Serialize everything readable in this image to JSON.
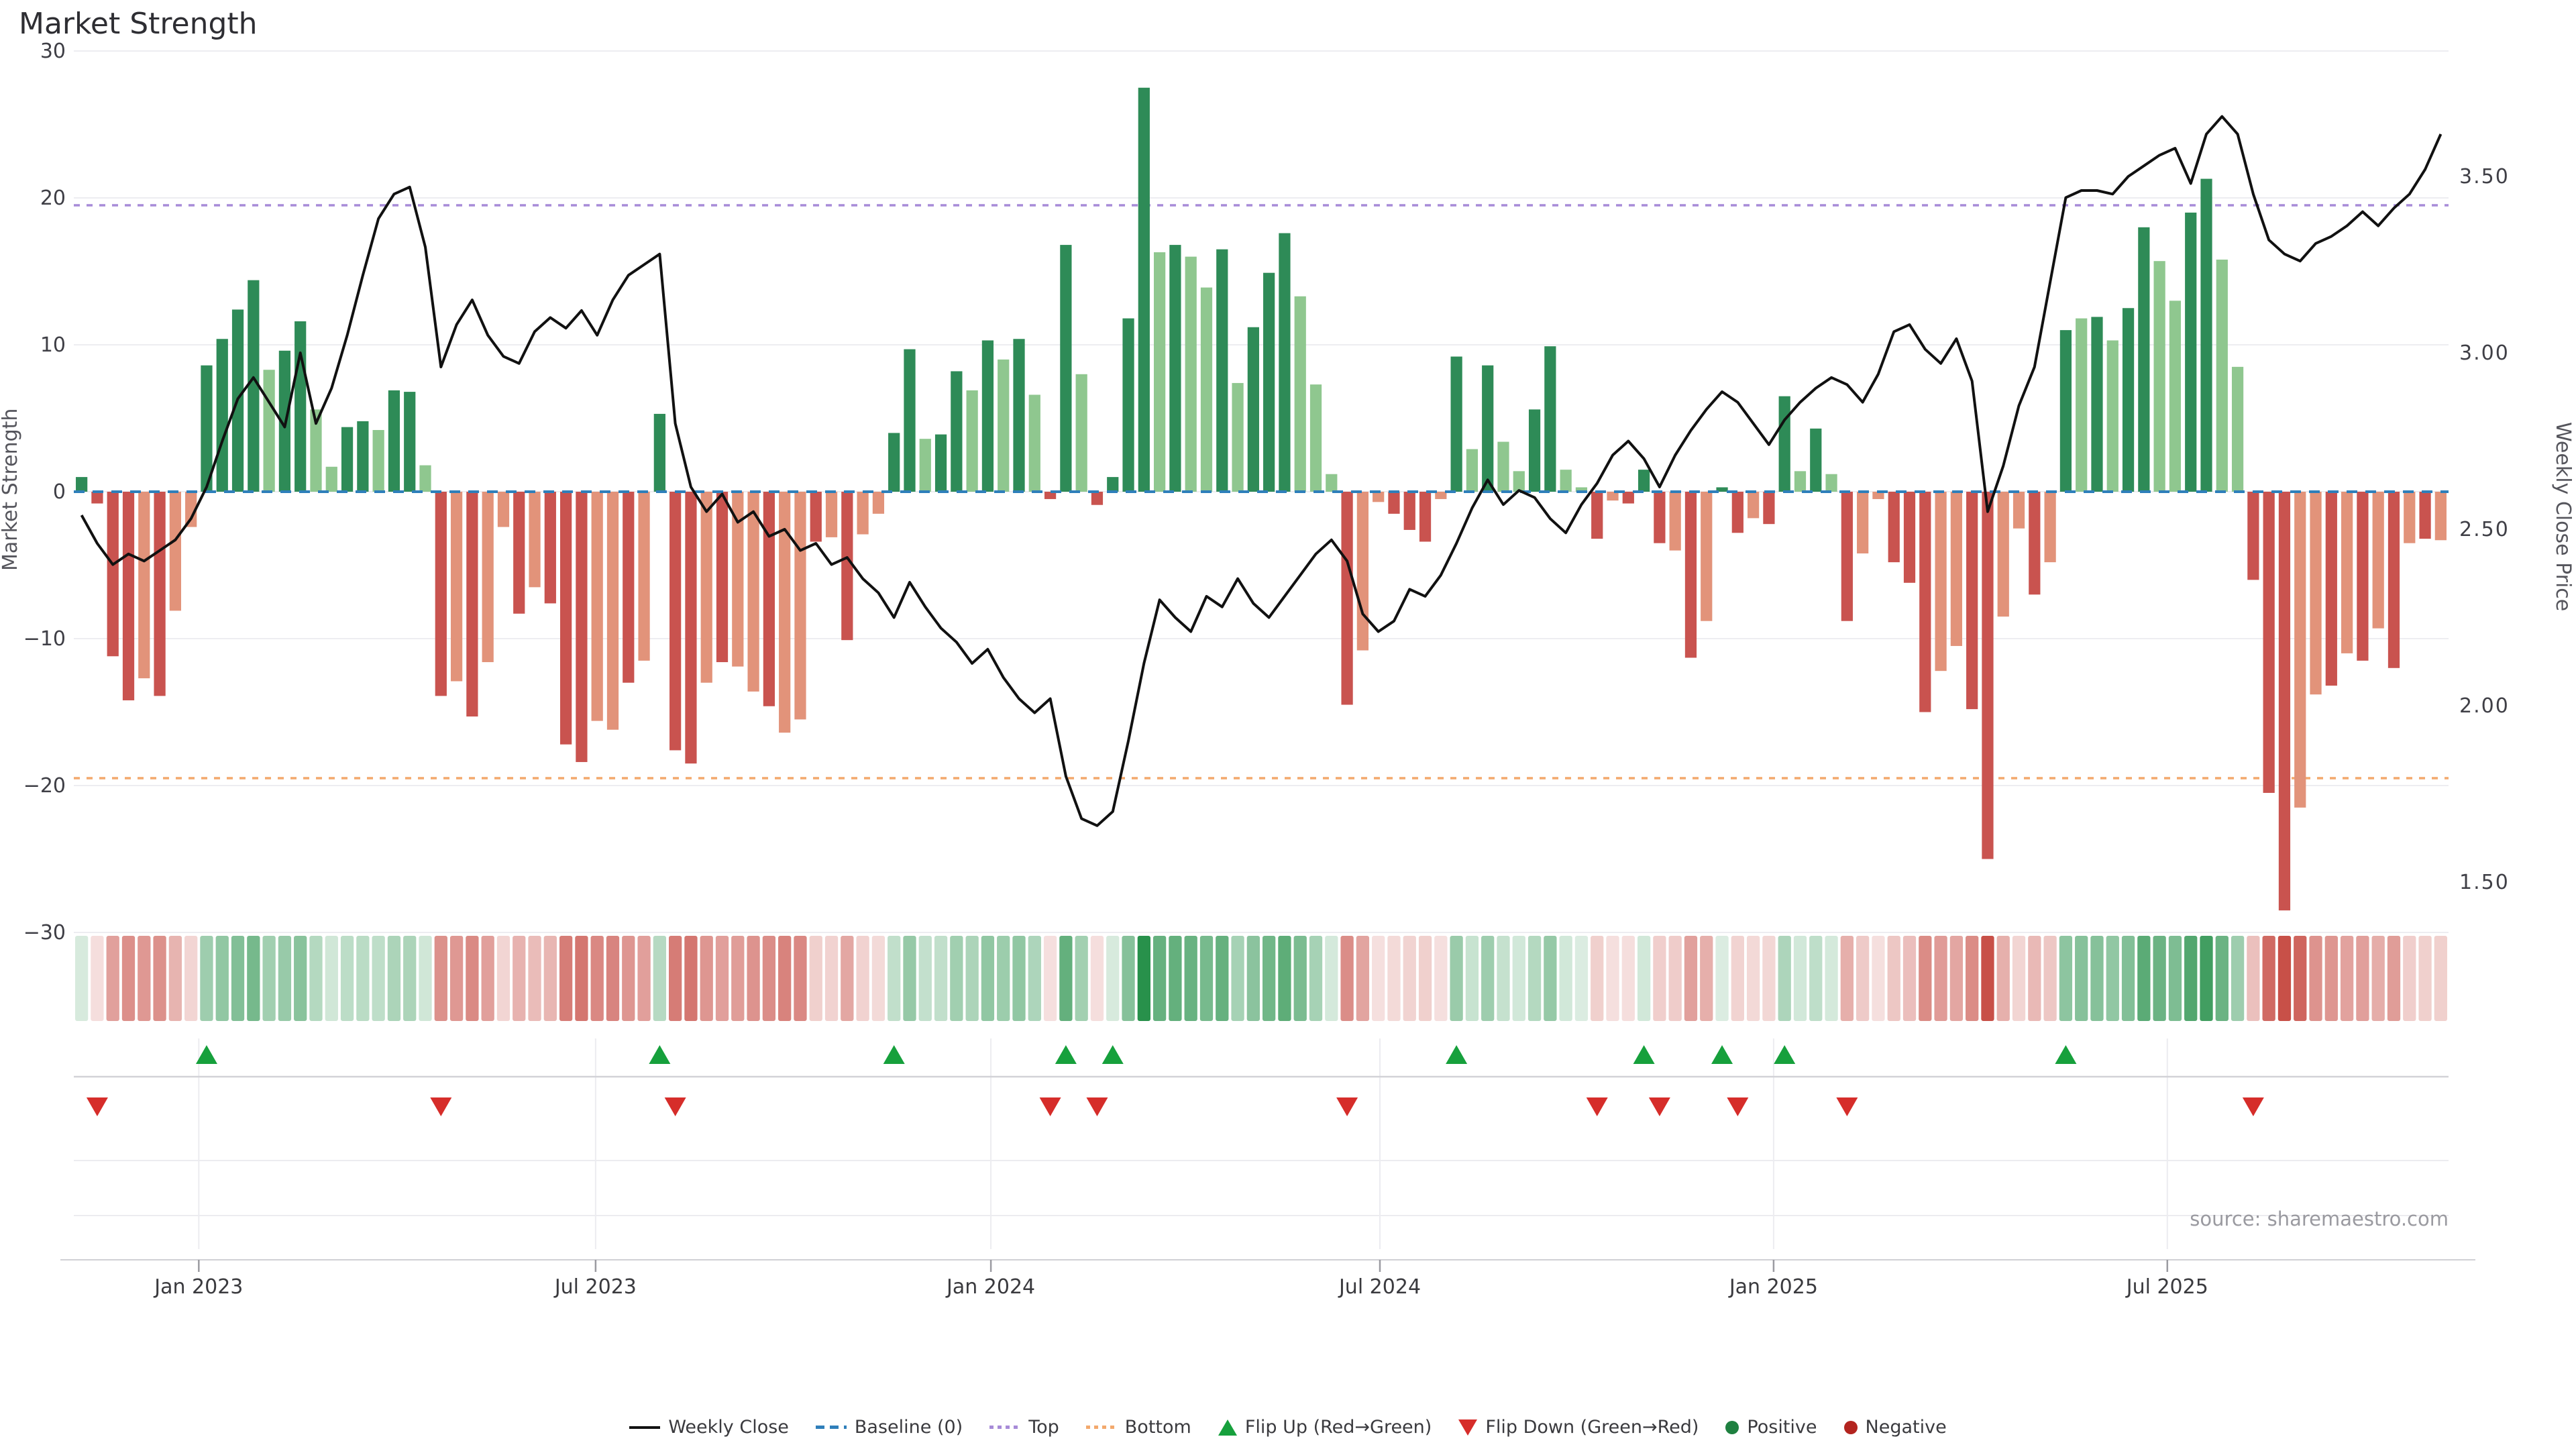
{
  "title": "Market Strength",
  "source_note": "source: sharemaestro.com",
  "axes": {
    "left_title": "Market Strength",
    "right_title": "Weekly Close Price",
    "left_ticks": [
      "30",
      "20",
      "10",
      "0",
      "−10",
      "−20",
      "−30"
    ],
    "left_tick_values": [
      30,
      20,
      10,
      0,
      -10,
      -20,
      -30
    ],
    "right_ticks": [
      "3.50",
      "3.00",
      "2.50",
      "2.00",
      "1.50"
    ],
    "right_tick_values": [
      3.5,
      3.0,
      2.5,
      2.0,
      1.5
    ],
    "x_ticks": [
      "Jan 2023",
      "Jul 2023",
      "Jan 2024",
      "Jul 2024",
      "Jan 2025",
      "Jul 2025"
    ],
    "x_tick_weeks": [
      8.0,
      33.4,
      58.7,
      83.6,
      108.8,
      134.0
    ]
  },
  "legend": {
    "items": [
      {
        "label": "Weekly Close",
        "icon": "weekly-close-line-icon"
      },
      {
        "label": "Baseline (0)",
        "icon": "baseline-dash-icon"
      },
      {
        "label": "Top",
        "icon": "top-dotted-icon"
      },
      {
        "label": "Bottom",
        "icon": "bottom-dotted-icon"
      },
      {
        "label": "Flip Up (Red→Green)",
        "icon": "flip-up-triangle-icon"
      },
      {
        "label": "Flip Down (Green→Red)",
        "icon": "flip-down-triangle-icon"
      },
      {
        "label": "Positive",
        "icon": "positive-dot-icon"
      },
      {
        "label": "Negative",
        "icon": "negative-dot-icon"
      }
    ]
  },
  "colors": {
    "bar_green_dark": "#2e8b57",
    "bar_green_light": "#8fc78f",
    "bar_red_dark": "#c9534f",
    "bar_red_light": "#e2937a",
    "baseline": "#2f7fba",
    "top_line": "#a78bd8",
    "bottom_line": "#f3a96d",
    "price_line": "#111111",
    "flip_up": "#16a03c",
    "flip_down": "#d62d2a",
    "positive_dot": "#1e8040",
    "negative_dot": "#b3241f",
    "grid": "#ededf1",
    "heat_green": "40,145,75",
    "heat_red": "200,80,72"
  },
  "chart_data": {
    "type": "bar+line+heatmap",
    "title": "Market Strength",
    "ylabel_left": "Market Strength",
    "ylabel_right": "Weekly Close Price",
    "ylim_left": [
      -30,
      30
    ],
    "right_axis_ticks": [
      1.5,
      2.0,
      2.5,
      3.0,
      3.5
    ],
    "baseline_value": 0,
    "top_level": 19.5,
    "bottom_level": -19.5,
    "weeks": 152,
    "x_range_note": "weekly, Nov 2022 - Oct 2025",
    "strength": [
      1.0,
      -0.8,
      -11.2,
      -14.2,
      -12.7,
      -13.9,
      -8.1,
      -2.4,
      8.6,
      10.4,
      12.4,
      14.4,
      8.3,
      9.6,
      11.6,
      5.6,
      1.7,
      4.4,
      4.8,
      4.2,
      6.9,
      6.8,
      1.8,
      -13.9,
      -12.9,
      -15.3,
      -11.6,
      -2.4,
      -8.3,
      -6.5,
      -7.6,
      -17.2,
      -18.4,
      -15.6,
      -16.2,
      -13.0,
      -11.5,
      5.3,
      -17.6,
      -18.5,
      -13.0,
      -11.6,
      -11.9,
      -13.6,
      -14.6,
      -16.4,
      -15.5,
      -3.4,
      -3.1,
      -10.1,
      -2.9,
      -1.5,
      4.0,
      9.7,
      3.6,
      3.9,
      8.2,
      6.9,
      10.3,
      9.0,
      10.4,
      6.6,
      -0.5,
      16.8,
      8.0,
      -0.9,
      1.0,
      11.8,
      27.5,
      16.3,
      16.8,
      16.0,
      13.9,
      16.5,
      7.4,
      11.2,
      14.9,
      17.6,
      13.3,
      7.3,
      1.2,
      -14.5,
      -10.8,
      -0.7,
      -1.5,
      -2.6,
      -3.4,
      -0.5,
      9.2,
      2.9,
      8.6,
      3.4,
      1.4,
      5.6,
      9.9,
      1.5,
      0.3,
      -3.2,
      -0.6,
      -0.8,
      1.5,
      -3.5,
      -4.0,
      -11.3,
      -8.8,
      0.3,
      -2.8,
      -1.8,
      -2.2,
      6.5,
      1.4,
      4.3,
      1.2,
      -8.8,
      -4.2,
      -0.5,
      -4.8,
      -6.2,
      -15.0,
      -12.2,
      -10.5,
      -14.8,
      -25.0,
      -8.5,
      -2.5,
      -7.0,
      -4.8,
      11.0,
      11.8,
      11.9,
      10.3,
      12.5,
      18.0,
      15.7,
      13.0,
      19.0,
      21.3,
      15.8,
      8.5,
      -6.0,
      -20.5,
      -28.5,
      -21.5,
      -13.8,
      -13.2,
      -11.0,
      -11.5,
      -9.3,
      -12.0,
      -3.5,
      -3.2,
      -3.3
    ],
    "strength_shade": "DDDDLDLLDDDDLDDLLDDLDDLDLDLLDLDDDLLDLDDDLDLLDLLDLDLLDDLDDLDLDLDDLDDDDLDLLDLDDDLLLDLLDDDLDLDLLDDLLDLDDDLDLDDLDDLDLDLLDDDLLDDLLDLDLDLDDLLDDLLDDDLLDLDLDLDL",
    "price": [
      2.54,
      2.46,
      2.4,
      2.43,
      2.41,
      2.44,
      2.47,
      2.53,
      2.62,
      2.75,
      2.87,
      2.93,
      2.86,
      2.79,
      3.0,
      2.8,
      2.9,
      3.05,
      3.22,
      3.38,
      3.45,
      3.47,
      3.3,
      2.96,
      3.08,
      3.15,
      3.05,
      2.99,
      2.97,
      3.06,
      3.1,
      3.07,
      3.12,
      3.05,
      3.15,
      3.22,
      3.25,
      3.28,
      2.8,
      2.62,
      2.55,
      2.6,
      2.52,
      2.55,
      2.48,
      2.5,
      2.44,
      2.46,
      2.4,
      2.42,
      2.36,
      2.32,
      2.25,
      2.35,
      2.28,
      2.22,
      2.18,
      2.12,
      2.16,
      2.08,
      2.02,
      1.98,
      2.02,
      1.8,
      1.68,
      1.66,
      1.7,
      1.9,
      2.12,
      2.3,
      2.25,
      2.21,
      2.31,
      2.28,
      2.36,
      2.29,
      2.25,
      2.31,
      2.37,
      2.43,
      2.47,
      2.41,
      2.26,
      2.21,
      2.24,
      2.33,
      2.31,
      2.37,
      2.46,
      2.56,
      2.64,
      2.57,
      2.61,
      2.59,
      2.53,
      2.49,
      2.57,
      2.63,
      2.71,
      2.75,
      2.7,
      2.62,
      2.71,
      2.78,
      2.84,
      2.89,
      2.86,
      2.8,
      2.74,
      2.81,
      2.86,
      2.9,
      2.93,
      2.91,
      2.86,
      2.94,
      3.06,
      3.08,
      3.01,
      2.97,
      3.04,
      2.92,
      2.55,
      2.68,
      2.85,
      2.96,
      3.2,
      3.44,
      3.46,
      3.46,
      3.45,
      3.5,
      3.53,
      3.56,
      3.58,
      3.48,
      3.62,
      3.67,
      3.62,
      3.45,
      3.32,
      3.28,
      3.26,
      3.31,
      3.33,
      3.36,
      3.4,
      3.36,
      3.41,
      3.45,
      3.52,
      3.62
    ],
    "flip_up_weeks": [
      8,
      37,
      52,
      63,
      66,
      88,
      100,
      105,
      109,
      127
    ],
    "flip_down_weeks": [
      1,
      23,
      38,
      62,
      65,
      81,
      97,
      101,
      106,
      113,
      139
    ]
  }
}
